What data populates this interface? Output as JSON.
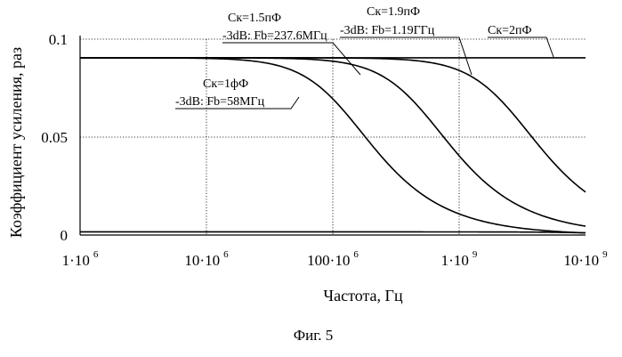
{
  "chart_data": {
    "type": "line",
    "xscale": "log",
    "xlim": [
      1000000,
      10000000000
    ],
    "ylim": [
      0,
      0.1
    ],
    "grid": true,
    "xlabel": "Частота, Гц",
    "ylabel": "Коэффициент усиления, раз",
    "x_ticks": [
      {
        "value": 1000000,
        "mantissa": "1·10",
        "exp": "6"
      },
      {
        "value": 10000000,
        "mantissa": "10·10",
        "exp": "6"
      },
      {
        "value": 100000000,
        "mantissa": "100·10",
        "exp": "6"
      },
      {
        "value": 1000000000,
        "mantissa": "1·10",
        "exp": "9"
      },
      {
        "value": 10000000000,
        "mantissa": "10·10",
        "exp": "9"
      }
    ],
    "y_ticks": [
      {
        "value": 0,
        "label": "0"
      },
      {
        "value": 0.05,
        "label": "0.05"
      },
      {
        "value": 0.1,
        "label": "0.1"
      }
    ],
    "series": [
      {
        "name": "Ск=2пФ",
        "model": {
          "gain": 0.0905,
          "fb": 1000000000000.0
        }
      },
      {
        "name": "Ск=1.9пФ",
        "note": "-3dB: Fb=1.19ГГц",
        "model": {
          "gain": 0.0905,
          "fb": 2500000000.0
        }
      },
      {
        "name": "Ск=1.5пФ",
        "note": "-3dB: Fb=237.6МГц",
        "model": {
          "gain": 0.0905,
          "fb": 500000000.0
        }
      },
      {
        "name": "Ск=1фФ",
        "note": "-3dB: Fb=58МГц",
        "model": {
          "gain": 0.0905,
          "fb": 120000000.0
        }
      },
      {
        "name": "",
        "model": {
          "gain": 0.0016,
          "fb": 10000000000.0
        }
      }
    ]
  },
  "caption": "Фиг. 5"
}
